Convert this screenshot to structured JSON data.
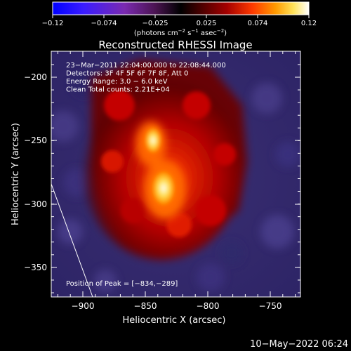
{
  "colorbar": {
    "ticks": [
      "−0.12",
      "−0.074",
      "−0.025",
      "0.025",
      "0.074",
      "0.12"
    ],
    "units_prefix": "(photons cm",
    "units_sup1": "−2",
    "units_mid1": " s",
    "units_sup2": "−1",
    "units_mid2": " asec",
    "units_sup3": "−2",
    "units_suffix": ")",
    "colormap": [
      "#0000ff",
      "#3a1cff",
      "#7a2ab0",
      "#4b1452",
      "#000000",
      "#4b0000",
      "#a40000",
      "#ff3a00",
      "#ff9a00",
      "#ffe35a",
      "#ffffff"
    ]
  },
  "plot": {
    "title": "Reconstructed RHESSI Image",
    "xlabel": "Heliocentric X (arcsec)",
    "ylabel": "Heliocentric Y (arcsec)",
    "x_ticks": [
      "−900",
      "−850",
      "−800",
      "−750"
    ],
    "y_ticks": [
      "−200",
      "−250",
      "−300",
      "−350"
    ],
    "annotation_lines": [
      "23−Mar−2011 22:04:00.000 to 22:08:44.000",
      "Detectors: 3F 4F 5F 6F 7F 8F, Att 0",
      "Energy Range: 3.0 − 6.0 keV",
      "Clean    Total counts: 2.21E+04"
    ],
    "peak_text": "Position of Peak = [−834,−289]"
  },
  "footer": {
    "date": "10−May−2022 06:24"
  }
}
